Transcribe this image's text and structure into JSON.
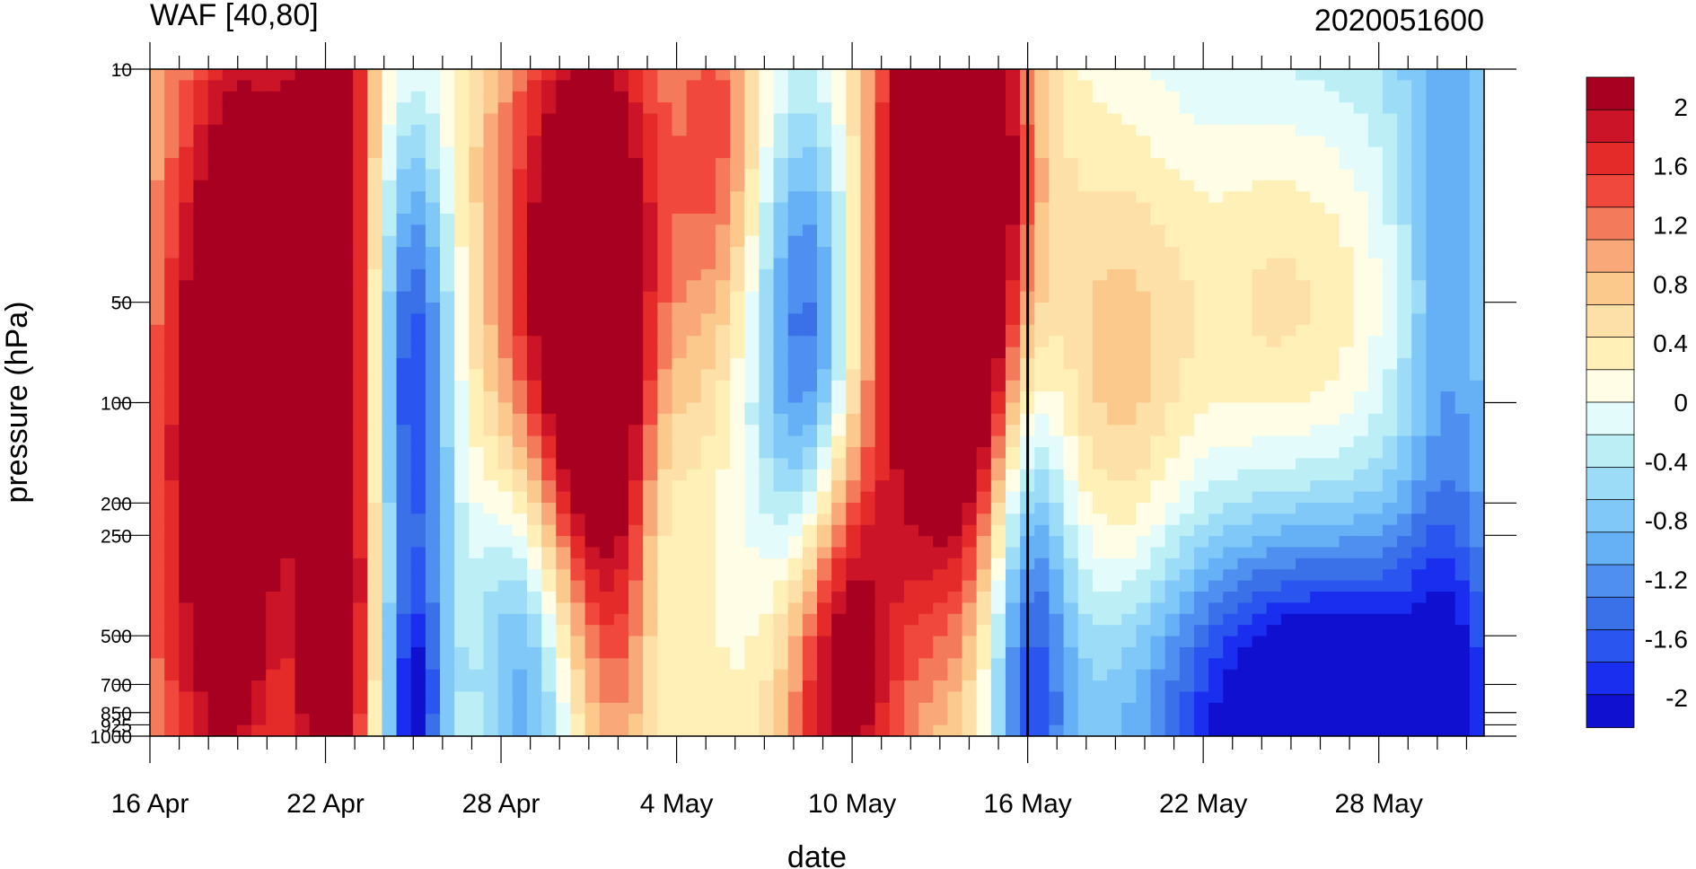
{
  "chart_data": {
    "type": "heatmap",
    "title_left": "WAF [40,80]",
    "title_right": "2020051600",
    "xlabel": "date",
    "ylabel": "pressure (hPa)",
    "x_ticks": [
      "16 Apr",
      "22 Apr",
      "28 Apr",
      "4 May",
      "10 May",
      "16 May",
      "22 May",
      "28 May"
    ],
    "x_range": [
      "16 Apr",
      "31 May"
    ],
    "y_scale": "log",
    "y_ticks": [
      "10",
      "50",
      "100",
      "200",
      "250",
      "500",
      "700",
      "850",
      "925",
      "1000"
    ],
    "y_range": [
      1000,
      10
    ],
    "vertical_marker": "16 May",
    "colorbar_levels": [
      -2.2,
      -2.0,
      -1.8,
      -1.6,
      -1.4,
      -1.2,
      -1.0,
      -0.8,
      -0.6,
      -0.4,
      -0.2,
      0.0,
      0.2,
      0.4,
      0.6,
      0.8,
      1.0,
      1.2,
      1.4,
      1.6,
      1.8,
      2.0,
      2.2
    ],
    "colorbar_labels": [
      "2",
      "1.6",
      "1.2",
      "0.8",
      "0.4",
      "0",
      "-0.4",
      "-0.8",
      "-1.2",
      "-1.6",
      "-2"
    ],
    "colorbar_colors": [
      "#1010d0",
      "#1a2ef0",
      "#2a55ee",
      "#3a70e8",
      "#4f8ff0",
      "#66b0f5",
      "#7fc8f8",
      "#9ddcf6",
      "#bceef6",
      "#e3fbfb",
      "#fffde6",
      "#fff0b8",
      "#fde0a8",
      "#fbc98c",
      "#f9a87a",
      "#f47a5c",
      "#f0483c",
      "#e52a2a",
      "#cc1428",
      "#a80020"
    ],
    "grid": false,
    "features": [
      {
        "value": 2.4,
        "days": 3.5,
        "p": 90,
        "sd": 1.6,
        "sp": 0.75
      },
      {
        "value": 2.3,
        "days": 6.2,
        "p": 30,
        "sd": 0.9,
        "sp": 0.8
      },
      {
        "value": 2.6,
        "days": 15.0,
        "p": 70,
        "sd": 2.0,
        "sp": 0.8
      },
      {
        "value": 2.6,
        "days": 27.5,
        "p": 45,
        "sd": 1.8,
        "sp": 0.75
      },
      {
        "value": 1.4,
        "days": 27.5,
        "p": 15,
        "sd": 1.5,
        "sp": 0.5
      },
      {
        "value": 1.2,
        "days": 19.5,
        "p": 15,
        "sd": 1.0,
        "sp": 0.5
      },
      {
        "value": -2.0,
        "days": 9.0,
        "p": 90,
        "sd": 1.0,
        "sp": 0.6
      },
      {
        "value": -1.9,
        "days": 22.5,
        "p": 80,
        "sd": 1.2,
        "sp": 0.6
      },
      {
        "value": -1.9,
        "days": 13.0,
        "p": 580,
        "sd": 1.5,
        "sp": 0.5
      },
      {
        "value": -1.8,
        "days": 9.0,
        "p": 930,
        "sd": 0.8,
        "sp": 0.3
      },
      {
        "value": 2.0,
        "days": 23.5,
        "p": 570,
        "sd": 1.4,
        "sp": 0.5
      },
      {
        "value": 1.0,
        "days": 6.5,
        "p": 500,
        "sd": 0.9,
        "sp": 0.5
      },
      {
        "value": -1.5,
        "days": 30.0,
        "p": 520,
        "sd": 1.0,
        "sp": 0.6
      },
      {
        "value": -2.2,
        "days": 40.0,
        "p": 920,
        "sd": 4.5,
        "sp": 0.4
      },
      {
        "value": -1.0,
        "days": 40.0,
        "p": 12,
        "sd": 6.0,
        "sp": 2.4
      },
      {
        "value": -0.8,
        "days": 44.5,
        "p": 100,
        "sd": 1.2,
        "sp": 2.0
      },
      {
        "value": 1.0,
        "days": 39.0,
        "p": 50,
        "sd": 3.0,
        "sp": 0.5
      },
      {
        "value": 1.0,
        "days": 33.0,
        "p": 95,
        "sd": 1.8,
        "sp": 0.6
      },
      {
        "value": -0.7,
        "days": 4.5,
        "p": 250,
        "sd": 0.8,
        "sp": 0.4
      },
      {
        "value": -0.8,
        "days": 17.5,
        "p": 240,
        "sd": 0.8,
        "sp": 0.5
      },
      {
        "value": -0.5,
        "days": 19.8,
        "p": 40,
        "sd": 1.2,
        "sp": 1.1
      },
      {
        "value": 0.5,
        "days": 6.0,
        "p": 950,
        "sd": 1.0,
        "sp": 0.4
      },
      {
        "value": 0.8,
        "days": 1.5,
        "p": 500,
        "sd": 1.8,
        "sp": 1.4
      },
      {
        "value": -0.5,
        "days": 31.5,
        "p": 330,
        "sd": 2.5,
        "sp": 1.0
      }
    ]
  }
}
